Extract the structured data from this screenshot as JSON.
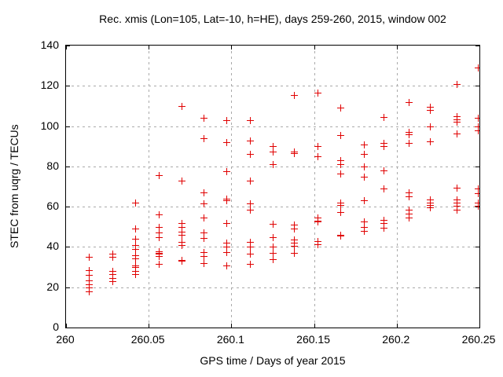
{
  "colors": {
    "marker": "#e00000",
    "grid": "#aaaaaa",
    "frame": "#000000",
    "background": "#ffffff",
    "text": "#000000"
  },
  "chart_data": {
    "type": "scatter",
    "title": "Rec. xmis (Lon=105, Lat=-10, h=HE), days 259-260, 2015, window 002",
    "xlabel": "GPS time / Days of year 2015",
    "ylabel": "STEC from uqrg / TECUs",
    "xlim": [
      260,
      260.25
    ],
    "ylim": [
      0,
      140
    ],
    "xticks": [
      260,
      260.05,
      260.1,
      260.15,
      260.2,
      260.25
    ],
    "xtick_labels": [
      "260",
      "260.05",
      "260.1",
      "260.15",
      "260.2",
      "260.25"
    ],
    "yticks": [
      0,
      20,
      40,
      60,
      80,
      100,
      120,
      140
    ],
    "ytick_labels": [
      "0",
      "20",
      "40",
      "60",
      "80",
      "100",
      "120",
      "140"
    ],
    "grid": true,
    "legend": "none",
    "marker": "plus",
    "points": [
      [
        260.014,
        35
      ],
      [
        260.014,
        28.5
      ],
      [
        260.014,
        26
      ],
      [
        260.014,
        23.5
      ],
      [
        260.014,
        21.5
      ],
      [
        260.014,
        20
      ],
      [
        260.014,
        18
      ],
      [
        260.028,
        36.5
      ],
      [
        260.028,
        35
      ],
      [
        260.028,
        28
      ],
      [
        260.028,
        26.5
      ],
      [
        260.028,
        24.5
      ],
      [
        260.028,
        23
      ],
      [
        260.042,
        62
      ],
      [
        260.042,
        49
      ],
      [
        260.042,
        44
      ],
      [
        260.042,
        41
      ],
      [
        260.042,
        39
      ],
      [
        260.042,
        36
      ],
      [
        260.042,
        34.5
      ],
      [
        260.042,
        31
      ],
      [
        260.042,
        30
      ],
      [
        260.042,
        28
      ],
      [
        260.042,
        26.5
      ],
      [
        260.056,
        75.5
      ],
      [
        260.056,
        56
      ],
      [
        260.056,
        50
      ],
      [
        260.056,
        47
      ],
      [
        260.056,
        45
      ],
      [
        260.056,
        38
      ],
      [
        260.056,
        37
      ],
      [
        260.056,
        36.5
      ],
      [
        260.056,
        35.5
      ],
      [
        260.056,
        31.5
      ],
      [
        260.07,
        110
      ],
      [
        260.07,
        73
      ],
      [
        260.07,
        52
      ],
      [
        260.07,
        50
      ],
      [
        260.07,
        47.5
      ],
      [
        260.07,
        46
      ],
      [
        260.07,
        42.5
      ],
      [
        260.07,
        41
      ],
      [
        260.07,
        33.5
      ],
      [
        260.07,
        33
      ],
      [
        260.083,
        104
      ],
      [
        260.083,
        94
      ],
      [
        260.083,
        67
      ],
      [
        260.083,
        61.5
      ],
      [
        260.083,
        54.5
      ],
      [
        260.083,
        47
      ],
      [
        260.083,
        44.5
      ],
      [
        260.083,
        37.5
      ],
      [
        260.083,
        35.5
      ],
      [
        260.083,
        32
      ],
      [
        260.097,
        103
      ],
      [
        260.097,
        92
      ],
      [
        260.097,
        77.5
      ],
      [
        260.097,
        64
      ],
      [
        260.097,
        63
      ],
      [
        260.097,
        52
      ],
      [
        260.097,
        42
      ],
      [
        260.097,
        40
      ],
      [
        260.097,
        37.5
      ],
      [
        260.097,
        31
      ],
      [
        260.111,
        103
      ],
      [
        260.111,
        93
      ],
      [
        260.111,
        86
      ],
      [
        260.111,
        73
      ],
      [
        260.111,
        61.5
      ],
      [
        260.111,
        58.5
      ],
      [
        260.111,
        42.5
      ],
      [
        260.111,
        40
      ],
      [
        260.111,
        36.5
      ],
      [
        260.111,
        31.5
      ],
      [
        260.125,
        90
      ],
      [
        260.125,
        87.5
      ],
      [
        260.125,
        81
      ],
      [
        260.125,
        51.5
      ],
      [
        260.125,
        45
      ],
      [
        260.125,
        40
      ],
      [
        260.125,
        37
      ],
      [
        260.125,
        34
      ],
      [
        260.138,
        115.5
      ],
      [
        260.138,
        87.5
      ],
      [
        260.138,
        86.5
      ],
      [
        260.138,
        51
      ],
      [
        260.138,
        49
      ],
      [
        260.138,
        43.5
      ],
      [
        260.138,
        42
      ],
      [
        260.138,
        40.5
      ],
      [
        260.138,
        37
      ],
      [
        260.152,
        116.5
      ],
      [
        260.152,
        90
      ],
      [
        260.152,
        85
      ],
      [
        260.152,
        54.5
      ],
      [
        260.152,
        53
      ],
      [
        260.152,
        52.5
      ],
      [
        260.152,
        43
      ],
      [
        260.152,
        41.5
      ],
      [
        260.166,
        109
      ],
      [
        260.166,
        95.5
      ],
      [
        260.166,
        83
      ],
      [
        260.166,
        81
      ],
      [
        260.166,
        76.5
      ],
      [
        260.166,
        62
      ],
      [
        260.166,
        61
      ],
      [
        260.166,
        57.5
      ],
      [
        260.166,
        46
      ],
      [
        260.166,
        45.5
      ],
      [
        260.18,
        91
      ],
      [
        260.18,
        86
      ],
      [
        260.18,
        80
      ],
      [
        260.18,
        75
      ],
      [
        260.18,
        63
      ],
      [
        260.18,
        52.5
      ],
      [
        260.18,
        50
      ],
      [
        260.18,
        48
      ],
      [
        260.192,
        104.5
      ],
      [
        260.192,
        91.5
      ],
      [
        260.192,
        90
      ],
      [
        260.192,
        78
      ],
      [
        260.192,
        69
      ],
      [
        260.192,
        53.5
      ],
      [
        260.192,
        52
      ],
      [
        260.192,
        49.5
      ],
      [
        260.207,
        112
      ],
      [
        260.207,
        97
      ],
      [
        260.207,
        96
      ],
      [
        260.207,
        91.5
      ],
      [
        260.207,
        67
      ],
      [
        260.207,
        65
      ],
      [
        260.207,
        58.5
      ],
      [
        260.207,
        56.5
      ],
      [
        260.207,
        54.5
      ],
      [
        260.22,
        109.5
      ],
      [
        260.22,
        108
      ],
      [
        260.22,
        100
      ],
      [
        260.22,
        92.5
      ],
      [
        260.22,
        63.5
      ],
      [
        260.22,
        62
      ],
      [
        260.22,
        61
      ],
      [
        260.22,
        59.5
      ],
      [
        260.236,
        121
      ],
      [
        260.236,
        105
      ],
      [
        260.236,
        103.5
      ],
      [
        260.236,
        102
      ],
      [
        260.236,
        96.5
      ],
      [
        260.236,
        69.5
      ],
      [
        260.236,
        63.5
      ],
      [
        260.236,
        62
      ],
      [
        260.236,
        60.5
      ],
      [
        260.236,
        58.5
      ],
      [
        260.249,
        129
      ],
      [
        260.249,
        104
      ],
      [
        260.249,
        100
      ],
      [
        260.249,
        98
      ],
      [
        260.249,
        69
      ],
      [
        260.249,
        66.5
      ],
      [
        260.249,
        62
      ],
      [
        260.249,
        60.5
      ]
    ]
  }
}
